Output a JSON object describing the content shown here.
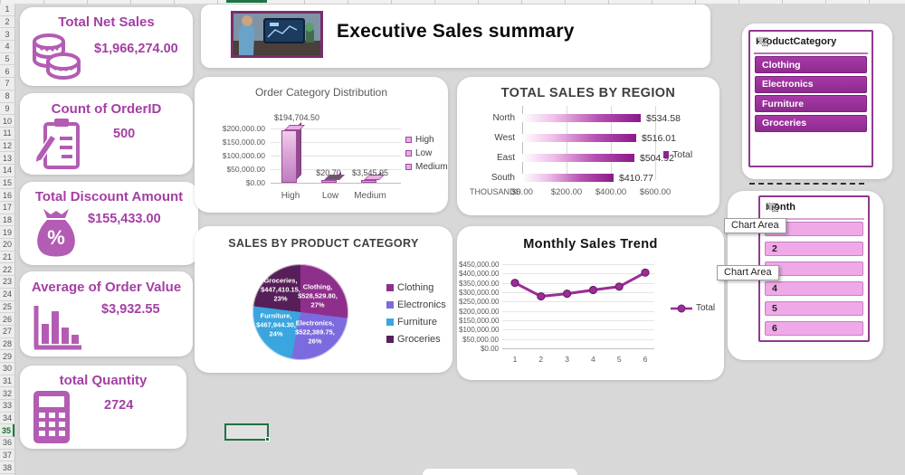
{
  "app": {
    "header_title": "Executive Sales summary"
  },
  "spreadsheet": {
    "row_numbers": [
      "1",
      "2",
      "3",
      "4",
      "5",
      "6",
      "7",
      "8",
      "9",
      "10",
      "11",
      "12",
      "13",
      "14",
      "15",
      "16",
      "17",
      "18",
      "19",
      "20",
      "21",
      "22",
      "23",
      "24",
      "25",
      "26",
      "27",
      "28",
      "29",
      "30",
      "31",
      "32",
      "33",
      "34",
      "35",
      "36",
      "37",
      "38"
    ],
    "selected_row": "35"
  },
  "kpi_cards": [
    {
      "title": "Total Net Sales",
      "value": "$1,966,274.00",
      "icon": "coins-icon"
    },
    {
      "title": "Count of OrderID",
      "value": "500",
      "icon": "clipboard-icon"
    },
    {
      "title": "Total Discount Amount",
      "value": "$155,433.00",
      "icon": "money-bag-icon"
    },
    {
      "title": "Average of Order Value",
      "value": "$3,932.55",
      "icon": "bar-chart-icon"
    },
    {
      "title": "total Quantity",
      "value": "2724",
      "icon": "calculator-icon"
    }
  ],
  "chart_data": [
    {
      "type": "bar",
      "title": "Order Category Distribution",
      "categories": [
        "High",
        "Low",
        "Medium"
      ],
      "values": [
        194704.5,
        20.7,
        3545.95
      ],
      "data_labels": [
        "$194,704.50",
        "$20.70",
        "$3,545.95"
      ],
      "y_ticks": [
        "$200,000.00",
        "$150,000.00",
        "$100,000.00",
        "$50,000.00",
        "$0.00"
      ],
      "ylim": [
        0,
        200000
      ],
      "legend": [
        "High",
        "Low",
        "Medium"
      ],
      "legend_position": "right",
      "grid": true
    },
    {
      "type": "bar",
      "orientation": "horizontal",
      "title": "TOTAL SALES BY REGION",
      "categories": [
        "North",
        "West",
        "East",
        "South"
      ],
      "values": [
        534.58,
        516.01,
        504.92,
        410.77
      ],
      "data_labels": [
        "$534.58",
        "$516.01",
        "$504.92",
        "$410.77"
      ],
      "x_ticks": [
        "$0.00",
        "$200.00",
        "$400.00",
        "$600.00"
      ],
      "axis_prefix": "THOUSANDS",
      "xlim": [
        0,
        600
      ],
      "legend": [
        "Total"
      ],
      "legend_position": "right",
      "grid": true
    },
    {
      "type": "pie",
      "title": "SALES BY PRODUCT CATEGORY",
      "categories": [
        "Clothing",
        "Electronics",
        "Furniture",
        "Groceries"
      ],
      "values": [
        528529.8,
        522389.75,
        467944.3,
        447410.15
      ],
      "percents": [
        27,
        26,
        24,
        23
      ],
      "slice_labels": [
        [
          "Clothing,",
          "$528,529.80,",
          "27%"
        ],
        [
          "Electronics,",
          "$522,389.75,",
          "26%"
        ],
        [
          "Furniture,",
          "$467,944.30,",
          "24%"
        ],
        [
          "Groceries,",
          "$447,410.15,",
          "23%"
        ]
      ],
      "colors": [
        "#8e2f8c",
        "#7c6bde",
        "#3aa5de",
        "#571f5a"
      ],
      "legend": [
        "Clothing",
        "Electronics",
        "Furniture",
        "Groceries"
      ],
      "legend_position": "right"
    },
    {
      "type": "line",
      "title": "Monthly Sales Trend",
      "x": [
        "1",
        "2",
        "3",
        "4",
        "5",
        "6"
      ],
      "series": [
        {
          "name": "Total",
          "values": [
            350000,
            278000,
            292000,
            312000,
            330000,
            405000
          ]
        }
      ],
      "y_ticks": [
        "$450,000.00",
        "$400,000.00",
        "$350,000.00",
        "$300,000.00",
        "$250,000.00",
        "$200,000.00",
        "$150,000.00",
        "$100,000.00",
        "$50,000.00",
        "$0.00"
      ],
      "ylim": [
        0,
        450000
      ],
      "line_color": "#9c2d96",
      "legend": [
        "Total"
      ],
      "legend_position": "right",
      "grid": true
    }
  ],
  "slicers": [
    {
      "title": "ProductCategory",
      "items": [
        "Clothing",
        "Electronics",
        "Furniture",
        "Groceries"
      ],
      "selected": [
        true,
        true,
        true,
        true
      ]
    },
    {
      "title": "Month",
      "items": [
        "1",
        "2",
        "3",
        "4",
        "5",
        "6"
      ],
      "selected": [
        false,
        false,
        false,
        false,
        false,
        false
      ]
    }
  ],
  "tooltips": [
    {
      "text": "Chart Area"
    },
    {
      "text": "Chart Area"
    }
  ],
  "colors": {
    "kpi_accent": "#a43fa4",
    "slicer_selected": "#9c2f9c",
    "slicer_unselected": "#efa9e7",
    "bar_gradient_end": "#8b1a8b",
    "bar3d_fill": "#dba4d6",
    "line_series": "#9c2d96",
    "selection_green": "#1f7244"
  }
}
